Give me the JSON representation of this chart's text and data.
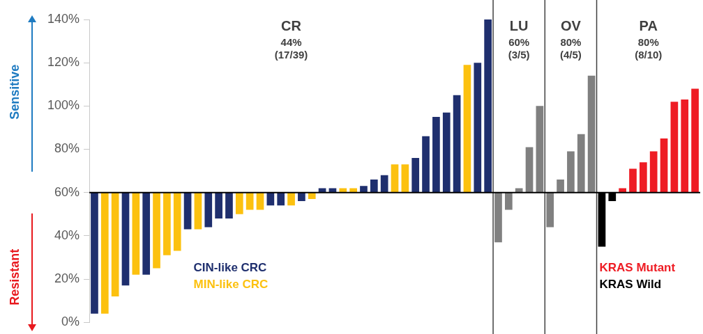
{
  "chart_data": {
    "type": "bar",
    "categories": [
      null,
      null,
      null,
      null,
      null,
      null,
      null,
      null,
      null,
      null,
      null,
      null,
      null,
      null,
      null,
      null,
      null,
      null,
      null,
      null,
      null,
      null,
      null,
      null,
      null,
      null,
      null,
      null,
      null,
      null,
      null,
      null,
      null,
      null,
      null,
      null,
      null,
      null,
      null,
      null,
      null,
      null,
      null,
      null,
      null,
      null,
      null,
      null,
      null,
      null,
      null,
      null,
      null,
      null,
      null,
      null,
      null,
      null,
      null
    ],
    "series": [
      {
        "name": "CIN-like CRC",
        "color": "#1f2f6e",
        "values": [
          -56,
          null,
          null,
          -43,
          null,
          -38,
          null,
          null,
          null,
          -17,
          null,
          -16,
          -12,
          -12,
          null,
          null,
          null,
          -6,
          -6,
          null,
          -4,
          null,
          2,
          2,
          null,
          null,
          3,
          6,
          8,
          null,
          null,
          16,
          26,
          35,
          37,
          45,
          null,
          60,
          80,
          null,
          null,
          null,
          null,
          null,
          null,
          null,
          null,
          null,
          null,
          null,
          null,
          null,
          null,
          null,
          null,
          null,
          null,
          null,
          null
        ],
        "base": [
          60,
          null,
          null,
          60,
          null,
          60,
          null,
          null,
          null,
          60,
          null,
          60,
          60,
          60,
          null,
          null,
          null,
          60,
          60,
          null,
          60,
          null,
          60,
          60,
          null,
          null,
          60,
          60,
          60,
          null,
          null,
          60,
          60,
          60,
          60,
          60,
          null,
          60,
          60,
          null,
          null,
          null,
          null,
          null,
          null,
          null,
          null,
          null,
          null,
          null,
          null,
          null,
          null,
          null,
          null,
          null,
          null,
          null,
          null
        ]
      },
      {
        "name": "MIN-like CRC",
        "color": "#fcc10f",
        "values": [
          null,
          -56,
          -48,
          null,
          -38,
          null,
          -35,
          -29,
          -27,
          null,
          -17,
          null,
          null,
          null,
          -10,
          -8,
          -8,
          null,
          null,
          -6,
          null,
          -3,
          null,
          null,
          2,
          2,
          null,
          null,
          null,
          13,
          13,
          null,
          null,
          null,
          null,
          null,
          59,
          null,
          null,
          null,
          null,
          null,
          null,
          null,
          null,
          null,
          null,
          null,
          null,
          null,
          null,
          null,
          null,
          null,
          null,
          null,
          null,
          null,
          null
        ],
        "base": [
          null,
          60,
          60,
          null,
          60,
          null,
          60,
          60,
          60,
          null,
          60,
          null,
          null,
          null,
          60,
          60,
          60,
          null,
          null,
          60,
          null,
          60,
          null,
          null,
          60,
          60,
          null,
          null,
          null,
          60,
          60,
          null,
          null,
          null,
          null,
          null,
          60,
          null,
          null,
          null,
          null,
          null,
          null,
          null,
          null,
          null,
          null,
          null,
          null,
          null,
          null,
          null,
          null,
          null,
          null,
          null,
          null,
          null,
          null
        ]
      },
      {
        "color": "#808080",
        "values": [
          null,
          null,
          null,
          null,
          null,
          null,
          null,
          null,
          null,
          null,
          null,
          null,
          null,
          null,
          null,
          null,
          null,
          null,
          null,
          null,
          null,
          null,
          null,
          null,
          null,
          null,
          null,
          null,
          null,
          null,
          null,
          null,
          null,
          null,
          null,
          null,
          null,
          null,
          null,
          -23,
          -8,
          2,
          21,
          40,
          null,
          null,
          null,
          null,
          null,
          null,
          null,
          null,
          null,
          null,
          null,
          null,
          null,
          null,
          null
        ],
        "base": [
          null,
          null,
          null,
          null,
          null,
          null,
          null,
          null,
          null,
          null,
          null,
          null,
          null,
          null,
          null,
          null,
          null,
          null,
          null,
          null,
          null,
          null,
          null,
          null,
          null,
          null,
          null,
          null,
          null,
          null,
          null,
          null,
          null,
          null,
          null,
          null,
          null,
          null,
          null,
          60,
          60,
          60,
          60,
          60,
          null,
          null,
          null,
          null,
          null,
          null,
          null,
          null,
          null,
          null,
          null,
          null,
          null,
          null,
          null
        ]
      },
      {
        "color": "#808080",
        "values": [
          null,
          null,
          null,
          null,
          null,
          null,
          null,
          null,
          null,
          null,
          null,
          null,
          null,
          null,
          null,
          null,
          null,
          null,
          null,
          null,
          null,
          null,
          null,
          null,
          null,
          null,
          null,
          null,
          null,
          null,
          null,
          null,
          null,
          null,
          null,
          null,
          null,
          null,
          null,
          null,
          null,
          null,
          null,
          null,
          -16,
          6,
          19,
          27,
          54,
          null,
          null,
          null,
          null,
          null,
          null,
          null,
          null,
          null,
          null
        ],
        "base": [
          null,
          null,
          null,
          null,
          null,
          null,
          null,
          null,
          null,
          null,
          null,
          null,
          null,
          null,
          null,
          null,
          null,
          null,
          null,
          null,
          null,
          null,
          null,
          null,
          null,
          null,
          null,
          null,
          null,
          null,
          null,
          null,
          null,
          null,
          null,
          null,
          null,
          null,
          null,
          null,
          null,
          null,
          null,
          null,
          60,
          60,
          60,
          60,
          60,
          null,
          null,
          null,
          null,
          null,
          null,
          null,
          null,
          null,
          null
        ]
      },
      {
        "name": "KRAS Mutant",
        "color": "#ee1c24",
        "values": [
          null,
          null,
          null,
          null,
          null,
          null,
          null,
          null,
          null,
          null,
          null,
          null,
          null,
          null,
          null,
          null,
          null,
          null,
          null,
          null,
          null,
          null,
          null,
          null,
          null,
          null,
          null,
          null,
          null,
          null,
          null,
          null,
          null,
          null,
          null,
          null,
          null,
          null,
          null,
          null,
          null,
          null,
          null,
          null,
          null,
          null,
          null,
          null,
          null,
          null,
          null,
          2,
          11,
          14,
          19,
          25,
          42,
          43,
          48
        ],
        "base": [
          null,
          null,
          null,
          null,
          null,
          null,
          null,
          null,
          null,
          null,
          null,
          null,
          null,
          null,
          null,
          null,
          null,
          null,
          null,
          null,
          null,
          null,
          null,
          null,
          null,
          null,
          null,
          null,
          null,
          null,
          null,
          null,
          null,
          null,
          null,
          null,
          null,
          null,
          null,
          null,
          null,
          null,
          null,
          null,
          null,
          null,
          null,
          null,
          null,
          null,
          null,
          60,
          60,
          60,
          60,
          60,
          60,
          60,
          60
        ]
      },
      {
        "name": "KRAS Wild",
        "color": "#000000",
        "values": [
          null,
          null,
          null,
          null,
          null,
          null,
          null,
          null,
          null,
          null,
          null,
          null,
          null,
          null,
          null,
          null,
          null,
          null,
          null,
          null,
          null,
          null,
          null,
          null,
          null,
          null,
          null,
          null,
          null,
          null,
          null,
          null,
          null,
          null,
          null,
          null,
          null,
          null,
          null,
          null,
          null,
          null,
          null,
          null,
          null,
          null,
          null,
          null,
          null,
          -25,
          -4,
          null,
          null,
          null,
          null,
          null,
          null,
          null,
          null
        ],
        "base": [
          null,
          null,
          null,
          null,
          null,
          null,
          null,
          null,
          null,
          null,
          null,
          null,
          null,
          null,
          null,
          null,
          null,
          null,
          null,
          null,
          null,
          null,
          null,
          null,
          null,
          null,
          null,
          null,
          null,
          null,
          null,
          null,
          null,
          null,
          null,
          null,
          null,
          null,
          null,
          null,
          null,
          null,
          null,
          null,
          null,
          null,
          null,
          null,
          null,
          60,
          60,
          null,
          null,
          null,
          null,
          null,
          null,
          null,
          null
        ]
      }
    ],
    "ylim": [
      0,
      140
    ],
    "yticks": [
      {
        "value": 0,
        "label": "0%"
      },
      {
        "value": 20,
        "label": "20%"
      },
      {
        "value": 40,
        "label": "40%"
      },
      {
        "value": 60,
        "label": "60%"
      },
      {
        "value": 80,
        "label": "80%"
      },
      {
        "value": 100,
        "label": "100%"
      },
      {
        "value": 120,
        "label": "120%"
      },
      {
        "value": 140,
        "label": "140%"
      }
    ],
    "ref_lines": [
      {
        "axis": "y",
        "value": 60,
        "color": "#000000"
      }
    ],
    "annotations": [
      "CR\n44%\n(17/39)",
      "LU\n60%\n(3/5)",
      "OV\n80%\n(4/5)",
      "PA\n80%\n(8/10)",
      "Sensitive",
      "Resistant"
    ],
    "grid": false
  }
}
